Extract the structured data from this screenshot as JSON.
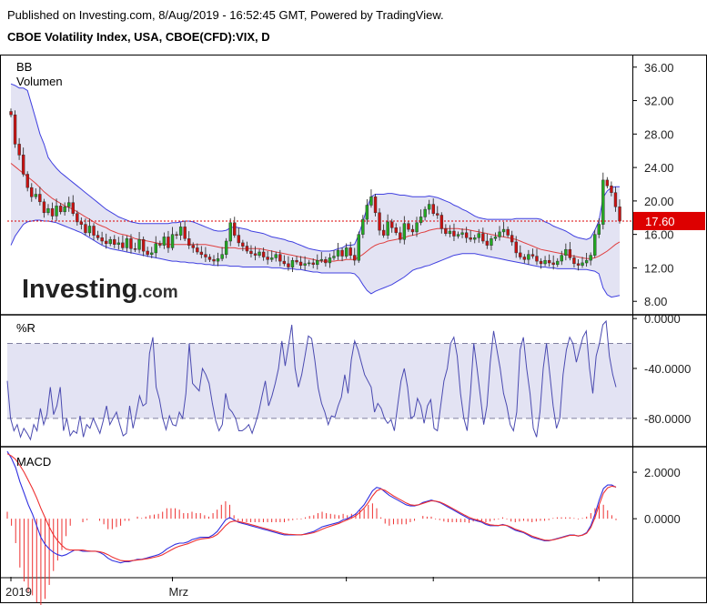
{
  "header": {
    "published": "Published on Investing.com, 8/Aug/2019 - 16:52:45 GMT, Powered by TradingView.",
    "title": "CBOE Volatility Index, USA, CBOE(CFD):VIX, D"
  },
  "watermark": {
    "brand": "Investing",
    "suffix": ".com"
  },
  "colors": {
    "band_fill": "#e3e3f3",
    "band_line": "#4040e0",
    "mid_line": "#e04040",
    "candle_up": "#22aa22",
    "candle_down": "#cc1111",
    "current_line": "#dd0000",
    "wr_line": "#4a4ab0",
    "macd_line": "#3030e0",
    "signal_line": "#ee3030",
    "hist": "#ee3030"
  },
  "chart_data": [
    {
      "type": "candlestick",
      "panel": "price",
      "indicator_labels": [
        "BB",
        "Volumen"
      ],
      "yticks": [
        "36.00",
        "32.00",
        "28.00",
        "24.00",
        "20.00",
        "16.00",
        "12.00",
        "8.00"
      ],
      "ylim": [
        6.5,
        37.5
      ],
      "current_value": 17.6,
      "current_label": "17.60",
      "x_labels": [
        {
          "label": "2019",
          "bar": 0
        },
        {
          "label": "Mrz",
          "bar": 39
        },
        {
          "label": "",
          "bar": 81
        },
        {
          "label": "",
          "bar": 102
        },
        {
          "label": "",
          "bar": 142
        }
      ],
      "closes": [
        30.3,
        26.8,
        25.5,
        23.2,
        21.6,
        20.5,
        20.8,
        19.9,
        18.6,
        19.1,
        18.2,
        19.4,
        18.7,
        19.3,
        19.8,
        18.5,
        17.5,
        17.2,
        16.2,
        17.0,
        15.9,
        15.6,
        15.2,
        14.9,
        15.4,
        14.8,
        15.0,
        14.4,
        15.5,
        14.3,
        14.2,
        15.4,
        14.0,
        13.6,
        13.8,
        14.9,
        14.7,
        15.7,
        14.4,
        16.0,
        15.9,
        16.9,
        15.5,
        14.7,
        14.4,
        13.9,
        13.6,
        13.3,
        13.0,
        12.8,
        13.1,
        13.6,
        15.2,
        17.4,
        15.9,
        15.0,
        14.6,
        14.0,
        13.7,
        13.5,
        13.9,
        13.3,
        13.0,
        13.2,
        13.6,
        12.8,
        12.5,
        12.1,
        12.9,
        12.7,
        12.3,
        12.5,
        12.6,
        12.4,
        12.9,
        13.0,
        12.6,
        13.2,
        13.4,
        14.1,
        13.4,
        14.4,
        13.5,
        12.9,
        16.0,
        17.8,
        19.5,
        20.5,
        18.6,
        16.5,
        15.9,
        17.5,
        16.8,
        16.2,
        15.4,
        17.3,
        16.6,
        16.3,
        17.4,
        18.1,
        19.0,
        19.6,
        18.5,
        18.3,
        16.7,
        16.1,
        16.4,
        15.8,
        16.0,
        16.2,
        15.6,
        15.4,
        15.6,
        16.1,
        15.2,
        14.7,
        15.5,
        15.7,
        16.3,
        16.6,
        15.9,
        15.1,
        13.8,
        13.3,
        13.0,
        13.6,
        13.4,
        12.8,
        12.5,
        12.9,
        12.6,
        12.4,
        12.8,
        13.5,
        14.2,
        13.2,
        12.5,
        12.3,
        12.6,
        12.9,
        13.5,
        16.0,
        17.2,
        22.5,
        21.8,
        21.0,
        19.3,
        17.6
      ],
      "upper_band": [
        34.0,
        33.8,
        33.5,
        33.5,
        33.2,
        31.5,
        29.8,
        28.0,
        26.8,
        25.2,
        24.5,
        23.9,
        23.4,
        23.0,
        22.6,
        22.2,
        21.8,
        21.4,
        21.0,
        20.6,
        20.2,
        19.8,
        19.4,
        19.0,
        18.7,
        18.4,
        18.1,
        17.9,
        17.7,
        17.5,
        17.4,
        17.3,
        17.3,
        17.3,
        17.3,
        17.3,
        17.3,
        17.3,
        17.3,
        17.4,
        17.4,
        17.5,
        17.6,
        17.6,
        17.5,
        17.3,
        17.1,
        16.9,
        16.7,
        16.5,
        16.4,
        16.4,
        16.5,
        16.8,
        16.9,
        16.8,
        16.7,
        16.6,
        16.4,
        16.3,
        16.2,
        16.1,
        15.9,
        15.7,
        15.6,
        15.5,
        15.4,
        15.2,
        15.1,
        14.9,
        14.7,
        14.5,
        14.3,
        14.2,
        14.1,
        14.0,
        14.0,
        14.0,
        14.1,
        14.3,
        14.4,
        14.7,
        14.7,
        14.8,
        16.0,
        17.5,
        19.2,
        20.5,
        20.8,
        20.8,
        20.8,
        20.9,
        20.9,
        20.8,
        20.7,
        20.7,
        20.6,
        20.5,
        20.5,
        20.5,
        20.5,
        20.6,
        20.5,
        20.4,
        20.2,
        20.0,
        19.8,
        19.5,
        19.3,
        19.0,
        18.8,
        18.5,
        18.2,
        18.0,
        17.9,
        17.8,
        17.8,
        17.8,
        17.8,
        17.8,
        17.8,
        17.8,
        17.9,
        17.9,
        17.9,
        17.9,
        17.9,
        17.9,
        17.8,
        17.5,
        17.3,
        17.0,
        16.8,
        16.6,
        16.4,
        16.1,
        15.8,
        15.6,
        15.5,
        15.4,
        15.6,
        16.5,
        17.6,
        20.4,
        21.2,
        21.6,
        21.7,
        21.7
      ],
      "middle_band": [
        24.5,
        24.1,
        23.7,
        23.3,
        22.9,
        22.5,
        22.1,
        21.6,
        21.1,
        20.7,
        20.3,
        20.0,
        19.7,
        19.4,
        19.2,
        19.0,
        18.7,
        18.4,
        18.1,
        17.8,
        17.5,
        17.2,
        17.0,
        16.8,
        16.5,
        16.3,
        16.1,
        16.0,
        15.9,
        15.7,
        15.5,
        15.4,
        15.3,
        15.2,
        15.1,
        15.0,
        14.9,
        14.9,
        14.8,
        14.8,
        14.8,
        14.8,
        14.8,
        14.8,
        14.8,
        14.8,
        14.8,
        14.8,
        14.7,
        14.6,
        14.5,
        14.4,
        14.4,
        14.4,
        14.4,
        14.3,
        14.3,
        14.3,
        14.3,
        14.3,
        14.3,
        14.2,
        14.1,
        14.0,
        13.9,
        13.8,
        13.7,
        13.6,
        13.5,
        13.4,
        13.3,
        13.2,
        13.1,
        13.0,
        12.9,
        12.8,
        12.8,
        12.8,
        12.8,
        12.9,
        12.9,
        13.0,
        13.0,
        13.0,
        13.3,
        13.6,
        14.0,
        14.4,
        14.7,
        14.9,
        15.0,
        15.2,
        15.3,
        15.4,
        15.5,
        15.6,
        15.8,
        15.9,
        16.0,
        16.2,
        16.3,
        16.5,
        16.6,
        16.7,
        16.7,
        16.7,
        16.7,
        16.7,
        16.7,
        16.6,
        16.6,
        16.5,
        16.4,
        16.3,
        16.2,
        16.1,
        16.0,
        15.9,
        15.8,
        15.7,
        15.6,
        15.5,
        15.4,
        15.2,
        15.0,
        14.8,
        14.6,
        14.4,
        14.2,
        14.1,
        14.0,
        13.9,
        13.8,
        13.7,
        13.6,
        13.5,
        13.4,
        13.3,
        13.2,
        13.1,
        13.1,
        13.2,
        13.4,
        13.7,
        14.0,
        14.4,
        14.8,
        15.1
      ],
      "lower_band": [
        14.7,
        15.8,
        16.5,
        17.2,
        17.5,
        17.6,
        17.7,
        17.7,
        17.6,
        17.6,
        17.5,
        17.4,
        17.2,
        17.0,
        16.8,
        16.6,
        16.4,
        16.2,
        15.9,
        15.6,
        15.3,
        15.0,
        14.7,
        14.5,
        14.3,
        14.2,
        14.1,
        14.0,
        13.9,
        13.8,
        13.7,
        13.6,
        13.5,
        13.4,
        13.3,
        13.2,
        13.1,
        13.0,
        12.9,
        12.8,
        12.8,
        12.7,
        12.7,
        12.6,
        12.6,
        12.5,
        12.5,
        12.4,
        12.4,
        12.3,
        12.3,
        12.3,
        12.3,
        12.2,
        12.2,
        12.2,
        12.1,
        12.1,
        12.1,
        12.1,
        12.1,
        12.1,
        12.1,
        12.0,
        12.0,
        12.0,
        11.9,
        11.9,
        11.9,
        11.8,
        11.8,
        11.7,
        11.6,
        11.5,
        11.5,
        11.4,
        11.4,
        11.4,
        11.4,
        11.4,
        11.4,
        11.4,
        11.4,
        11.3,
        10.8,
        10.0,
        9.3,
        8.9,
        9.2,
        9.4,
        9.6,
        9.8,
        10.0,
        10.3,
        10.6,
        10.9,
        11.3,
        11.7,
        11.9,
        12.0,
        12.2,
        12.3,
        12.5,
        12.7,
        12.9,
        13.1,
        13.3,
        13.5,
        13.6,
        13.7,
        13.7,
        13.7,
        13.7,
        13.6,
        13.5,
        13.4,
        13.3,
        13.2,
        13.1,
        13.0,
        12.9,
        12.8,
        12.7,
        12.6,
        12.5,
        12.4,
        12.3,
        12.2,
        12.1,
        12.1,
        12.0,
        12.0,
        11.9,
        11.9,
        11.9,
        11.9,
        11.9,
        11.8,
        11.8,
        11.8,
        11.7,
        11.6,
        11.3,
        9.6,
        8.8,
        8.5,
        8.6,
        8.7
      ]
    },
    {
      "type": "line",
      "panel": "williams_r",
      "label": "%R",
      "yticks": [
        "0.0000",
        "-40.0000",
        "-80.0000"
      ],
      "ylim": [
        -102,
        3
      ],
      "levels": [
        -20,
        -80
      ],
      "values": [
        -50,
        -80,
        -90,
        -85,
        -95,
        -88,
        -92,
        -97,
        -85,
        -90,
        -72,
        -85,
        -77,
        -55,
        -77,
        -70,
        -55,
        -90,
        -80,
        -94,
        -90,
        -92,
        -78,
        -95,
        -85,
        -88,
        -80,
        -86,
        -92,
        -82,
        -70,
        -85,
        -80,
        -75,
        -85,
        -94,
        -92,
        -70,
        -88,
        -76,
        -62,
        -70,
        -68,
        -28,
        -15,
        -55,
        -65,
        -80,
        -89,
        -78,
        -85,
        -86,
        -75,
        -80,
        -60,
        -20,
        -52,
        -55,
        -58,
        -40,
        -45,
        -52,
        -68,
        -82,
        -90,
        -85,
        -60,
        -72,
        -75,
        -80,
        -90,
        -90,
        -88,
        -85,
        -92,
        -84,
        -75,
        -62,
        -50,
        -70,
        -62,
        -52,
        -40,
        -18,
        -38,
        -22,
        -5,
        -40,
        -55,
        -45,
        -30,
        -14,
        -16,
        -34,
        -56,
        -68,
        -75,
        -85,
        -78,
        -79,
        -70,
        -63,
        -45,
        -60,
        -33,
        -18,
        -25,
        -35,
        -45,
        -50,
        -55,
        -75,
        -68,
        -72,
        -80,
        -84,
        -81,
        -90,
        -70,
        -50,
        -40,
        -55,
        -80,
        -78,
        -64,
        -70,
        -84,
        -70,
        -65,
        -88,
        -90,
        -70,
        -50,
        -40,
        -20,
        -15,
        -30,
        -60,
        -80,
        -90,
        -60,
        -20,
        -40,
        -62,
        -85,
        -70,
        -35,
        -10,
        -25,
        -40,
        -60,
        -70,
        -85,
        -90,
        -75,
        -25,
        -15,
        -40,
        -60,
        -88,
        -95,
        -75,
        -40,
        -20,
        -45,
        -70,
        -88,
        -80,
        -45,
        -25,
        -15,
        -20,
        -35,
        -25,
        -15,
        -10,
        -40,
        -60,
        -30,
        -20,
        -5,
        -2,
        -30,
        -45,
        -55
      ],
      "n_bars": 147
    },
    {
      "type": "line",
      "panel": "macd",
      "label": "MACD",
      "yticks": [
        "2.0000",
        "0.0000"
      ],
      "ylim": [
        -2.5,
        3.1
      ],
      "macd": [
        2.9,
        2.6,
        2.2,
        1.6,
        1.1,
        0.6,
        0.2,
        -0.3,
        -0.8,
        -1.1,
        -1.3,
        -1.45,
        -1.55,
        -1.6,
        -1.55,
        -1.45,
        -1.35,
        -1.35,
        -1.4,
        -1.4,
        -1.4,
        -1.4,
        -1.45,
        -1.55,
        -1.7,
        -1.8,
        -1.85,
        -1.9,
        -1.85,
        -1.85,
        -1.8,
        -1.75,
        -1.75,
        -1.7,
        -1.65,
        -1.6,
        -1.55,
        -1.45,
        -1.3,
        -1.2,
        -1.1,
        -1.05,
        -1.05,
        -1.0,
        -0.9,
        -0.85,
        -0.8,
        -0.8,
        -0.8,
        -0.7,
        -0.55,
        -0.3,
        -0.05,
        0.05,
        -0.05,
        -0.15,
        -0.2,
        -0.25,
        -0.3,
        -0.35,
        -0.4,
        -0.45,
        -0.5,
        -0.55,
        -0.6,
        -0.65,
        -0.7,
        -0.7,
        -0.7,
        -0.7,
        -0.7,
        -0.65,
        -0.6,
        -0.55,
        -0.45,
        -0.35,
        -0.3,
        -0.25,
        -0.2,
        -0.15,
        -0.05,
        0.0,
        0.1,
        0.2,
        0.4,
        0.6,
        0.9,
        1.2,
        1.35,
        1.3,
        1.15,
        1.0,
        0.9,
        0.8,
        0.7,
        0.6,
        0.55,
        0.55,
        0.6,
        0.7,
        0.75,
        0.8,
        0.75,
        0.7,
        0.6,
        0.5,
        0.4,
        0.3,
        0.2,
        0.1,
        0.0,
        -0.05,
        -0.1,
        -0.15,
        -0.25,
        -0.3,
        -0.3,
        -0.3,
        -0.25,
        -0.3,
        -0.4,
        -0.5,
        -0.55,
        -0.6,
        -0.7,
        -0.8,
        -0.85,
        -0.9,
        -0.95,
        -0.95,
        -0.9,
        -0.85,
        -0.8,
        -0.75,
        -0.7,
        -0.7,
        -0.75,
        -0.7,
        -0.6,
        -0.3,
        0.2,
        0.8,
        1.3,
        1.45,
        1.45,
        1.35
      ],
      "signal": [
        2.8,
        2.7,
        2.55,
        2.3,
        2.0,
        1.65,
        1.3,
        0.9,
        0.45,
        0.05,
        -0.35,
        -0.7,
        -0.95,
        -1.15,
        -1.3,
        -1.35,
        -1.35,
        -1.35,
        -1.35,
        -1.38,
        -1.4,
        -1.4,
        -1.42,
        -1.47,
        -1.55,
        -1.65,
        -1.73,
        -1.8,
        -1.82,
        -1.82,
        -1.8,
        -1.78,
        -1.76,
        -1.73,
        -1.7,
        -1.66,
        -1.62,
        -1.55,
        -1.45,
        -1.35,
        -1.25,
        -1.18,
        -1.13,
        -1.08,
        -1.0,
        -0.93,
        -0.88,
        -0.85,
        -0.83,
        -0.78,
        -0.68,
        -0.5,
        -0.3,
        -0.15,
        -0.1,
        -0.12,
        -0.16,
        -0.2,
        -0.25,
        -0.3,
        -0.35,
        -0.4,
        -0.45,
        -0.5,
        -0.55,
        -0.6,
        -0.65,
        -0.67,
        -0.68,
        -0.69,
        -0.69,
        -0.67,
        -0.64,
        -0.6,
        -0.53,
        -0.45,
        -0.38,
        -0.32,
        -0.26,
        -0.2,
        -0.12,
        -0.05,
        0.03,
        0.12,
        0.28,
        0.46,
        0.7,
        0.98,
        1.2,
        1.28,
        1.22,
        1.1,
        0.98,
        0.88,
        0.78,
        0.68,
        0.6,
        0.58,
        0.6,
        0.66,
        0.72,
        0.77,
        0.76,
        0.72,
        0.64,
        0.55,
        0.45,
        0.35,
        0.25,
        0.15,
        0.06,
        -0.01,
        -0.06,
        -0.11,
        -0.2,
        -0.26,
        -0.28,
        -0.29,
        -0.27,
        -0.29,
        -0.36,
        -0.45,
        -0.51,
        -0.57,
        -0.66,
        -0.75,
        -0.81,
        -0.87,
        -0.92,
        -0.93,
        -0.91,
        -0.87,
        -0.82,
        -0.77,
        -0.72,
        -0.71,
        -0.74,
        -0.71,
        -0.63,
        -0.38,
        0.05,
        0.6,
        1.1,
        1.33,
        1.4,
        1.37
      ]
    }
  ]
}
